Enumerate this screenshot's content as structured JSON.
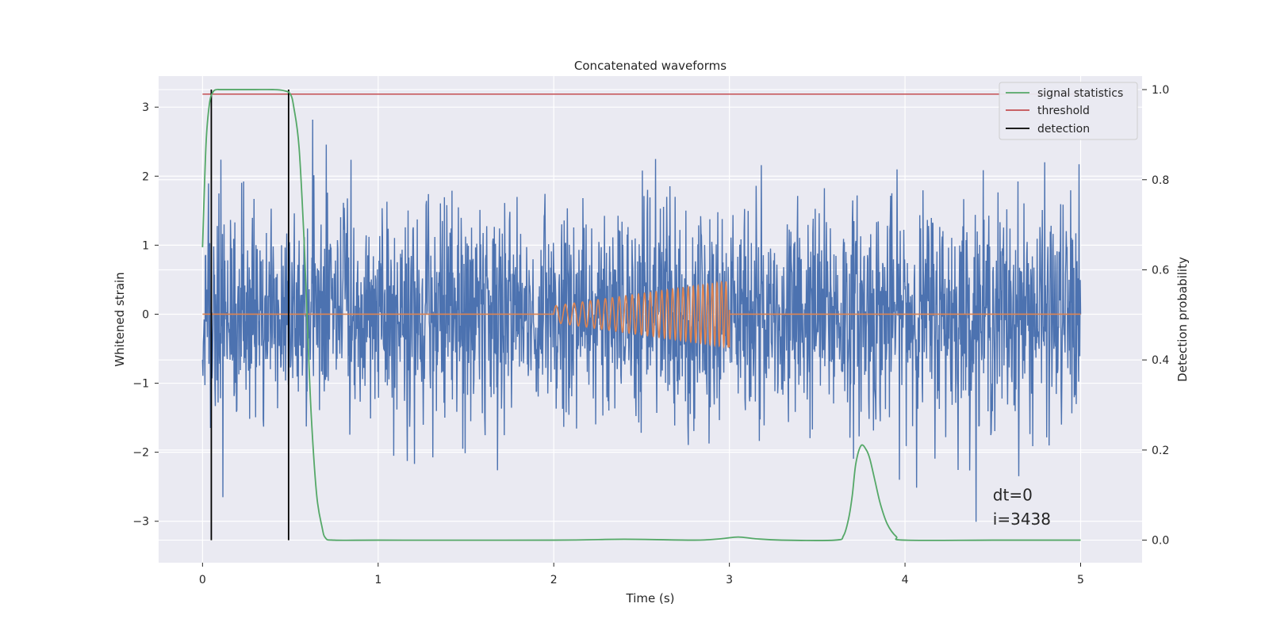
{
  "chart_data": {
    "type": "line",
    "title": "Concatenated waveforms",
    "xlabel": "Time (s)",
    "ylabel": "Whitened strain",
    "y2label": "Detection probability",
    "xlim": [
      -0.25,
      5.35
    ],
    "ylim": [
      -3.6,
      3.45
    ],
    "y2lim": [
      -0.05,
      1.03
    ],
    "x_ticks": [
      0,
      1,
      2,
      3,
      4,
      5
    ],
    "y_ticks": [
      -3,
      -2,
      -1,
      0,
      1,
      2,
      3
    ],
    "y2_ticks": [
      0.0,
      0.2,
      0.4,
      0.6,
      0.8,
      1.0
    ],
    "x_tick_labels": [
      "0",
      "1",
      "2",
      "3",
      "4",
      "5"
    ],
    "y_tick_labels": [
      "−3",
      "−2",
      "−1",
      "0",
      "1",
      "2",
      "3"
    ],
    "y2_tick_labels": [
      "0.0",
      "0.2",
      "0.4",
      "0.6",
      "0.8",
      "1.0"
    ],
    "grid": true,
    "legend_position": "top-right",
    "colors": {
      "noise": "#4c72b0",
      "injected": "#dd8452",
      "statistics": "#55a868",
      "threshold": "#c44e52",
      "detection": "#000000",
      "background": "#eaeaf2",
      "grid": "#ffffff"
    },
    "series": [
      {
        "name": "",
        "role": "noise",
        "axis": "left",
        "x_range": [
          0,
          5
        ],
        "amplitude_sigma": 0.8,
        "peak_values": [
          3.05,
          -3.3
        ]
      },
      {
        "name": "",
        "role": "injected",
        "axis": "left",
        "x_range": [
          2,
          3
        ],
        "amplitude_start": 0.12,
        "amplitude_end": 0.48,
        "freq_start_hz": 18,
        "freq_end_hz": 40
      },
      {
        "name": "signal statistics",
        "role": "statistics",
        "axis": "right",
        "x": [
          0.0,
          0.02,
          0.04,
          0.06,
          0.08,
          0.1,
          0.15,
          0.2,
          0.3,
          0.4,
          0.46,
          0.5,
          0.52,
          0.55,
          0.58,
          0.6,
          0.62,
          0.65,
          0.68,
          0.7,
          0.75,
          1.0,
          2.0,
          2.4,
          2.8,
          2.95,
          3.05,
          3.15,
          3.3,
          3.6,
          3.65,
          3.68,
          3.7,
          3.72,
          3.75,
          3.78,
          3.8,
          3.83,
          3.86,
          3.9,
          3.95,
          4.0,
          4.5,
          5.0
        ],
        "y": [
          0.65,
          0.88,
          0.97,
          0.995,
          1.0,
          1.0,
          1.0,
          1.0,
          1.0,
          1.0,
          0.998,
          0.99,
          0.96,
          0.87,
          0.65,
          0.45,
          0.27,
          0.1,
          0.03,
          0.005,
          0.0,
          0.0,
          0.0,
          0.002,
          0.0,
          0.003,
          0.007,
          0.003,
          0.0,
          0.0,
          0.01,
          0.05,
          0.1,
          0.17,
          0.21,
          0.2,
          0.18,
          0.13,
          0.08,
          0.035,
          0.008,
          0.0,
          0.0,
          0.0
        ]
      },
      {
        "name": "threshold",
        "role": "threshold",
        "axis": "right",
        "x": [
          0.0,
          5.0
        ],
        "y": [
          0.99,
          0.99
        ]
      },
      {
        "name": "detection",
        "role": "detection",
        "axis": "right",
        "x": [
          0.05,
          0.49
        ],
        "y_range": [
          0.0,
          1.0
        ]
      }
    ],
    "annotations": [
      {
        "text": "dt=0",
        "x": 4.5,
        "y": -2.7
      },
      {
        "text": "i=3438",
        "x": 4.5,
        "y": -3.05
      }
    ]
  }
}
